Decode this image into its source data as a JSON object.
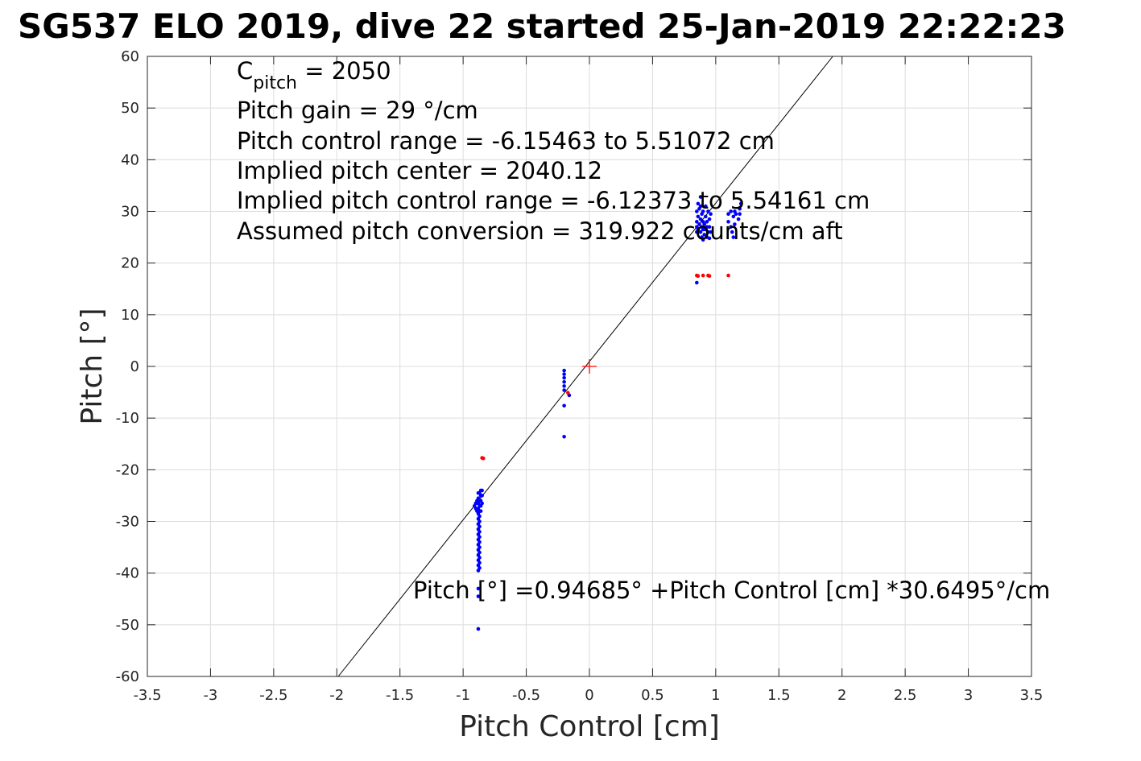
{
  "chart_data": {
    "type": "scatter",
    "title": "SG537 ELO 2019, dive 22 started 25-Jan-2019 22:22:23",
    "xlabel": "Pitch Control [cm]",
    "ylabel": "Pitch [°]",
    "xlim": [
      -3.5,
      3.5
    ],
    "ylim": [
      -60,
      60
    ],
    "xticks": [
      -3.5,
      -3,
      -2.5,
      -2,
      -1.5,
      -1,
      -0.5,
      0,
      0.5,
      1,
      1.5,
      2,
      2.5,
      3,
      3.5
    ],
    "xtick_labels": [
      "-3.5",
      "-3",
      "-2.5",
      "-2",
      "-1.5",
      "-1",
      "-0.5",
      "0",
      "0.5",
      "1",
      "1.5",
      "2",
      "2.5",
      "3",
      "3.5"
    ],
    "yticks": [
      60,
      50,
      40,
      30,
      20,
      10,
      0,
      -10,
      -20,
      -30,
      -40,
      -50,
      -60
    ],
    "ytick_labels": [
      "60",
      "50",
      "40",
      "30",
      "20",
      "10",
      "0",
      "-10",
      "-20",
      "-30",
      "-40",
      "-50",
      "-60"
    ],
    "grid": true,
    "colors": {
      "good_points": "#0000ff",
      "rejected_points": "#ff0000",
      "center_marker": "#ff0000",
      "fit_line": "#000000"
    },
    "annotations": {
      "cpitch_base": "C",
      "cpitch_sub": "pitch",
      "cpitch_value": " = 2050",
      "lines": [
        "Pitch gain = 29 °/cm",
        "Pitch control range = -6.15463 to 5.51072 cm",
        "Implied pitch center = 2040.12",
        "Implied pitch control range = -6.12373 to 5.54161 cm",
        "Assumed pitch conversion = 319.922 counts/cm aft"
      ],
      "fit_equation": "Pitch [°] =0.94685° +Pitch Control [cm] *30.6495°/cm"
    },
    "fit_line": {
      "intercept": 0.94685,
      "slope": 30.6495
    },
    "center_marker": {
      "x": 0,
      "y": 0
    },
    "series": [
      {
        "marker": "dot",
        "color": "#0000ff",
        "points": [
          [
            -0.91,
            -27
          ],
          [
            -0.9,
            -26.5
          ],
          [
            -0.9,
            -27.5
          ],
          [
            -0.89,
            -26
          ],
          [
            -0.89,
            -28
          ],
          [
            -0.88,
            -24.5
          ],
          [
            -0.88,
            -25.5
          ],
          [
            -0.88,
            -26.5
          ],
          [
            -0.88,
            -27.5
          ],
          [
            -0.88,
            -28.5
          ],
          [
            -0.88,
            -29.5
          ],
          [
            -0.88,
            -30.5
          ],
          [
            -0.88,
            -31.5
          ],
          [
            -0.88,
            -32.5
          ],
          [
            -0.88,
            -33.5
          ],
          [
            -0.88,
            -34.5
          ],
          [
            -0.88,
            -35.5
          ],
          [
            -0.88,
            -36.5
          ],
          [
            -0.88,
            -37.5
          ],
          [
            -0.88,
            -38.5
          ],
          [
            -0.88,
            -39.5
          ],
          [
            -0.87,
            -24.5
          ],
          [
            -0.87,
            -26
          ],
          [
            -0.87,
            -27
          ],
          [
            -0.87,
            -28
          ],
          [
            -0.87,
            -29
          ],
          [
            -0.87,
            -30
          ],
          [
            -0.87,
            -31
          ],
          [
            -0.87,
            -32
          ],
          [
            -0.87,
            -33
          ],
          [
            -0.87,
            -34
          ],
          [
            -0.87,
            -35
          ],
          [
            -0.87,
            -36
          ],
          [
            -0.87,
            -37
          ],
          [
            -0.87,
            -38
          ],
          [
            -0.87,
            -39
          ],
          [
            -0.86,
            -24
          ],
          [
            -0.86,
            -25
          ],
          [
            -0.86,
            -26
          ],
          [
            -0.86,
            -27
          ],
          [
            -0.86,
            -28
          ],
          [
            -0.85,
            -24
          ],
          [
            -0.85,
            -25
          ],
          [
            -0.85,
            -26.5
          ],
          [
            -0.88,
            -44.5
          ],
          [
            -0.88,
            -50.8
          ],
          [
            -0.88,
            -43
          ],
          [
            -0.2,
            -0.8
          ],
          [
            -0.2,
            -1.5
          ],
          [
            -0.2,
            -2.2
          ],
          [
            -0.2,
            -3
          ],
          [
            -0.2,
            -3.8
          ],
          [
            -0.2,
            -4.6
          ],
          [
            -0.2,
            -7.6
          ],
          [
            -0.2,
            -13.6
          ],
          [
            -0.16,
            -5.6
          ],
          [
            0.85,
            16.2
          ],
          [
            0.85,
            26
          ],
          [
            0.85,
            27
          ],
          [
            0.85,
            28
          ],
          [
            0.85,
            30
          ],
          [
            0.86,
            31.5
          ],
          [
            0.86,
            26.5
          ],
          [
            0.86,
            29
          ],
          [
            0.87,
            27.5
          ],
          [
            0.87,
            30.5
          ],
          [
            0.88,
            32.8
          ],
          [
            0.88,
            26
          ],
          [
            0.88,
            28.5
          ],
          [
            0.88,
            31
          ],
          [
            0.89,
            27
          ],
          [
            0.89,
            29.5
          ],
          [
            0.89,
            25
          ],
          [
            0.9,
            26.5
          ],
          [
            0.9,
            28
          ],
          [
            0.9,
            30
          ],
          [
            0.9,
            24.5
          ],
          [
            0.91,
            27.5
          ],
          [
            0.91,
            25.5
          ],
          [
            0.92,
            29
          ],
          [
            0.92,
            26.5
          ],
          [
            0.92,
            31
          ],
          [
            0.93,
            28
          ],
          [
            0.93,
            25
          ],
          [
            0.93,
            27
          ],
          [
            0.94,
            30
          ],
          [
            0.94,
            26
          ],
          [
            0.95,
            28.5
          ],
          [
            0.95,
            24.8
          ],
          [
            0.95,
            27
          ],
          [
            0.96,
            29.5
          ],
          [
            0.96,
            26
          ],
          [
            1.1,
            29.5
          ],
          [
            1.1,
            28
          ],
          [
            1.12,
            30
          ],
          [
            1.12,
            27
          ],
          [
            1.13,
            26
          ],
          [
            1.14,
            29
          ],
          [
            1.14,
            25
          ],
          [
            1.15,
            30
          ],
          [
            1.15,
            27.5
          ],
          [
            1.16,
            29.5
          ],
          [
            1.18,
            28.5
          ],
          [
            1.19,
            30.5
          ],
          [
            1.19,
            29.5
          ],
          [
            1.2,
            31.5
          ]
        ]
      },
      {
        "marker": "dot",
        "color": "#ff0000",
        "points": [
          [
            -0.85,
            -17.7
          ],
          [
            -0.84,
            -17.8
          ],
          [
            -0.17,
            -5.1
          ],
          [
            0.85,
            17.6
          ],
          [
            0.86,
            17.5
          ],
          [
            0.9,
            17.6
          ],
          [
            0.94,
            17.6
          ],
          [
            0.95,
            17.5
          ],
          [
            1.1,
            17.6
          ]
        ]
      }
    ]
  }
}
